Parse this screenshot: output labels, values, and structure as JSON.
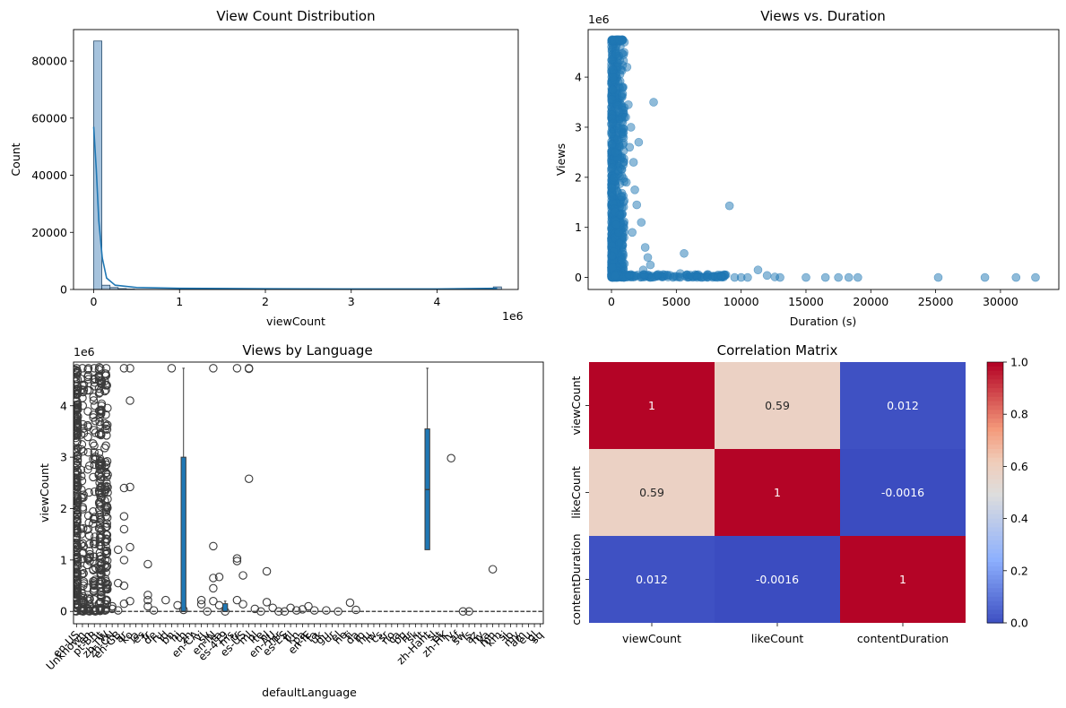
{
  "chart_data": [
    {
      "type": "bar",
      "title": "View Count Distribution",
      "xlabel": "viewCount",
      "ylabel": "Count",
      "x_offset_label": "1e6",
      "x_ticks": [
        "0",
        "1",
        "2",
        "3",
        "4"
      ],
      "y_ticks": [
        "0",
        "20000",
        "40000",
        "60000",
        "80000"
      ],
      "xlim": [
        -0.235,
        4.945
      ],
      "ylim": [
        0,
        91000
      ],
      "bin_edges": [
        -0.0,
        0.095,
        0.19,
        0.285,
        0.38,
        0.475,
        4.655,
        4.75
      ],
      "counts": [
        87000,
        1500,
        700,
        300,
        150,
        60,
        900
      ],
      "kde": [
        [
          0,
          57000
        ],
        [
          0.03,
          42000
        ],
        [
          0.06,
          24000
        ],
        [
          0.1,
          11000
        ],
        [
          0.15,
          4000
        ],
        [
          0.25,
          1500
        ],
        [
          0.5,
          700
        ],
        [
          1.0,
          400
        ],
        [
          2.0,
          250
        ],
        [
          3.0,
          200
        ],
        [
          4.0,
          180
        ],
        [
          4.7,
          400
        ]
      ],
      "colors": {
        "bar": "#a6c3dd",
        "edge": "#2b4e6d",
        "kde": "#1f77b4"
      }
    },
    {
      "type": "scatter",
      "title": "Views vs. Duration",
      "xlabel": "Duration (s)",
      "ylabel": "Views",
      "y_offset_label": "1e6",
      "x_ticks": [
        "0",
        "5000",
        "10000",
        "15000",
        "20000",
        "25000",
        "30000"
      ],
      "y_ticks": [
        "0",
        "1",
        "2",
        "3",
        "4"
      ],
      "xlim": [
        -1800,
        34500
      ],
      "ylim": [
        -0.24,
        4.95
      ],
      "points": [
        [
          3250,
          3.5
        ],
        [
          9100,
          1.43
        ],
        [
          5600,
          0.48
        ],
        [
          11300,
          0.15
        ],
        [
          12000,
          0.04
        ],
        [
          12600,
          0.01
        ],
        [
          13000,
          0.0
        ],
        [
          15000,
          0.0
        ],
        [
          16500,
          0.0
        ],
        [
          17500,
          0.0
        ],
        [
          18300,
          0.0
        ],
        [
          19000,
          0.0
        ],
        [
          25200,
          0.0
        ],
        [
          28800,
          0.0
        ],
        [
          31200,
          0.0
        ],
        [
          32700,
          0.0
        ],
        [
          2100,
          2.7
        ],
        [
          1700,
          2.3
        ],
        [
          1300,
          3.45
        ],
        [
          1100,
          3.2
        ],
        [
          1800,
          1.75
        ],
        [
          2300,
          1.1
        ],
        [
          2800,
          0.4
        ],
        [
          3600,
          0.06
        ],
        [
          4300,
          0.04
        ],
        [
          6200,
          0.02
        ],
        [
          7000,
          0.0
        ],
        [
          7800,
          0.0
        ],
        [
          8500,
          0.02
        ],
        [
          10000,
          0.0
        ],
        [
          10500,
          0.0
        ],
        [
          1000,
          4.7
        ],
        [
          1200,
          4.2
        ],
        [
          1500,
          3.0
        ],
        [
          900,
          3.8
        ],
        [
          1950,
          1.45
        ],
        [
          2600,
          0.6
        ],
        [
          3000,
          0.25
        ],
        [
          4800,
          0.02
        ],
        [
          5300,
          0.08
        ],
        [
          6600,
          0.0
        ],
        [
          7400,
          0.0
        ],
        [
          8200,
          0.0
        ],
        [
          9500,
          0.0
        ],
        [
          1400,
          2.6
        ],
        [
          1150,
          1.9
        ],
        [
          1600,
          0.9
        ],
        [
          2450,
          0.15
        ]
      ],
      "dense_region": {
        "x_max": 1000,
        "y_max": 4.75
      },
      "colors": {
        "point": "#1f77b4"
      }
    },
    {
      "type": "box",
      "title": "Views by Language",
      "xlabel": "defaultLanguage",
      "ylabel": "viewCount",
      "y_offset_label": "1e6",
      "y_ticks": [
        "0",
        "1",
        "2",
        "3",
        "4"
      ],
      "ylim": [
        -0.24,
        4.85
      ],
      "categories": [
        "en-US",
        "Unknown",
        "en",
        "pt-BR",
        "it",
        "zh-TW",
        "zh-CN",
        "en-GB",
        "ar",
        "ko",
        "ja",
        "es",
        "fr",
        "de",
        "ru",
        "id",
        "bn",
        "hi",
        "th",
        "zh",
        "en-CA",
        "vi",
        "sv",
        "en-IN",
        "ta",
        "es-419",
        "ms",
        "tr",
        "es-US",
        "ml",
        "pl",
        "te",
        "nl",
        "en-AU",
        "mr",
        "es-ES",
        "fil",
        "kn",
        "pa",
        "en-IE",
        "fa",
        "uk",
        "gu",
        "ur",
        "el",
        "ne",
        "fi",
        "da",
        "ro",
        "hu",
        "iw",
        "cs",
        "sr",
        "no",
        "ca",
        "bg",
        "hr",
        "sk",
        "lt",
        "zh-Hant",
        "sl",
        "et",
        "zh-HK",
        "lv",
        "af",
        "sw",
        "is",
        "az",
        "hy",
        "ka",
        "mn",
        "km",
        "si",
        "lo",
        "my",
        "am",
        "eu",
        "gl",
        "sq"
      ],
      "boxes": [
        {
          "category": "th",
          "q1": 0.0,
          "median": 0.0,
          "q3": 3.0,
          "whisker_low": 0.0,
          "whisker_high": 4.73
        },
        {
          "category": "es-419",
          "q1": 0.0,
          "median": 0.0,
          "q3": 0.15,
          "whisker_low": 0.0,
          "whisker_high": 0.2
        },
        {
          "category": "zh-Hant",
          "q1": 1.2,
          "median": 2.37,
          "q3": 3.55,
          "whisker_low": 0.0,
          "whisker_high": 4.73
        }
      ],
      "colors": {
        "box": "#1f77b4",
        "line": "#3b3b3b"
      }
    },
    {
      "type": "heatmap",
      "title": "Correlation Matrix",
      "labels": [
        "viewCount",
        "likeCount",
        "contentDuration"
      ],
      "matrix": [
        [
          1,
          0.59,
          0.012
        ],
        [
          0.59,
          1,
          -0.0016
        ],
        [
          0.012,
          -0.0016,
          1
        ]
      ],
      "matrix_text": [
        [
          "1",
          "0.59",
          "0.012"
        ],
        [
          "0.59",
          "1",
          "-0.0016"
        ],
        [
          "0.012",
          "-0.0016",
          "1"
        ]
      ],
      "colorbar_ticks": [
        "0.0",
        "0.2",
        "0.4",
        "0.6",
        "0.8",
        "1.0"
      ],
      "vmin": 0.0,
      "vmax": 1.0,
      "colormap": "coolwarm"
    }
  ]
}
